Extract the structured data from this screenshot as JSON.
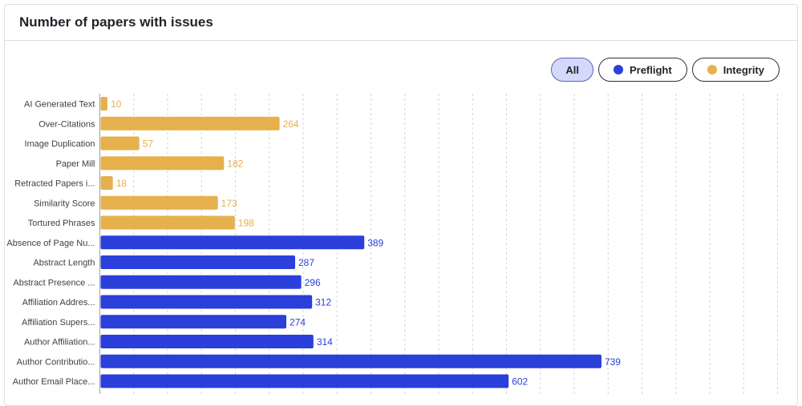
{
  "title": "Number of papers with issues",
  "filters": [
    {
      "label": "All",
      "active": true,
      "color": ""
    },
    {
      "label": "Preflight",
      "active": false,
      "color": "#2b3fdb"
    },
    {
      "label": "Integrity",
      "active": false,
      "color": "#e6b04c"
    }
  ],
  "chart_data": {
    "type": "bar",
    "orientation": "horizontal",
    "categories": [
      "AI Generated Text",
      "Over-Citations",
      "Image Duplication",
      "Paper Mill",
      "Retracted Papers i...",
      "Similarity Score",
      "Tortured Phrases",
      "Absence of Page Nu...",
      "Abstract Length",
      "Abstract Presence ...",
      "Affiliation Addres...",
      "Affiliation Supers...",
      "Author Affiliation...",
      "Author Contributio...",
      "Author Email Place..."
    ],
    "values": [
      10,
      264,
      57,
      182,
      18,
      173,
      198,
      389,
      287,
      296,
      312,
      274,
      314,
      739,
      602
    ],
    "groups": [
      "Integrity",
      "Integrity",
      "Integrity",
      "Integrity",
      "Integrity",
      "Integrity",
      "Integrity",
      "Preflight",
      "Preflight",
      "Preflight",
      "Preflight",
      "Preflight",
      "Preflight",
      "Preflight",
      "Preflight"
    ],
    "colors": {
      "Integrity": "#e6b04c",
      "Preflight": "#2b3fdb"
    },
    "xlim": [
      0,
      1000
    ],
    "grid": true,
    "xlabel": "",
    "ylabel": ""
  }
}
